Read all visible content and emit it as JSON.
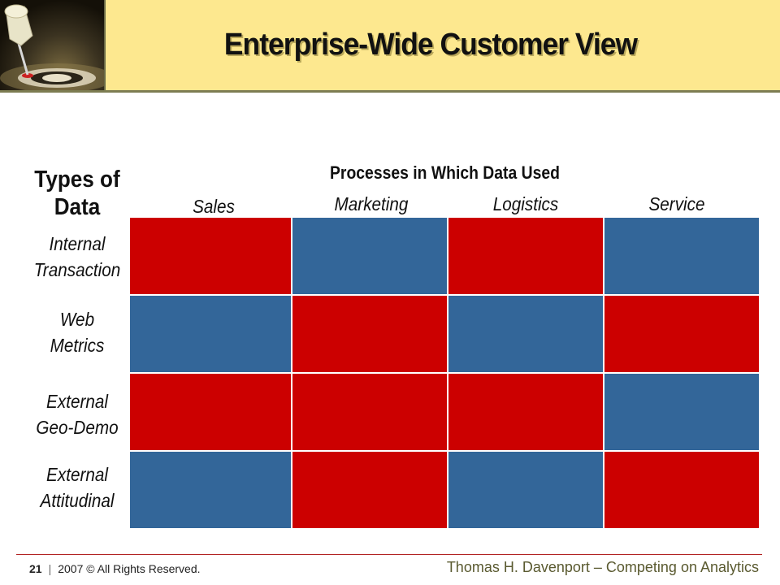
{
  "slide": {
    "title": "Enterprise-Wide Customer View"
  },
  "table": {
    "row_header_title_line1": "Types of",
    "row_header_title_line2": "Data",
    "column_group_title": "Processes in Which Data Used",
    "columns": [
      "Sales",
      "Marketing",
      "Logistics",
      "Service"
    ],
    "rows": [
      {
        "line1": "Internal",
        "line2": "Transaction",
        "cells": [
          "red",
          "blue",
          "red",
          "blue"
        ]
      },
      {
        "line1": "Web",
        "line2": "Metrics",
        "cells": [
          "blue",
          "red",
          "blue",
          "red"
        ]
      },
      {
        "line1": "External",
        "line2": "Geo-Demo",
        "cells": [
          "red",
          "red",
          "red",
          "blue"
        ]
      },
      {
        "line1": "External",
        "line2": "Attitudinal",
        "cells": [
          "blue",
          "red",
          "blue",
          "red"
        ]
      }
    ]
  },
  "colors": {
    "red": "#cc0000",
    "blue": "#336699",
    "header_bg": "#fde88f"
  },
  "footer": {
    "page_number": "21",
    "separator": "|",
    "copyright": "2007 © All Rights Reserved.",
    "credit": "Thomas H. Davenport – Competing on Analytics"
  },
  "icons": {
    "logo": "pushpin-target-icon"
  }
}
